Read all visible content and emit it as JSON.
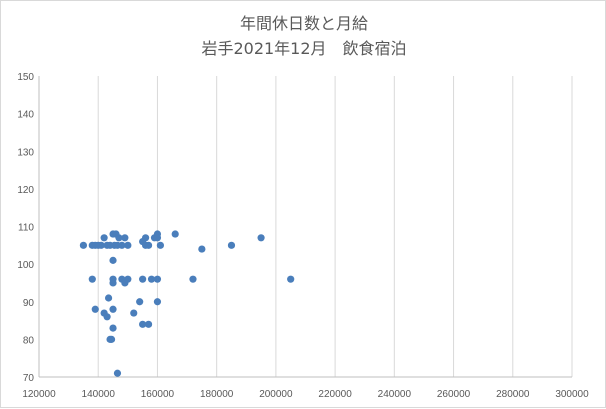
{
  "chart_data": {
    "type": "scatter",
    "title_lines": [
      "年間休日数と月給",
      "岩手2021年12月　飲食宿泊"
    ],
    "xlabel": "",
    "ylabel": "",
    "xlim": [
      120000,
      300000
    ],
    "ylim": [
      70,
      150
    ],
    "x_ticks": [
      120000,
      140000,
      160000,
      180000,
      200000,
      220000,
      240000,
      260000,
      280000,
      300000
    ],
    "y_ticks": [
      70,
      80,
      90,
      100,
      110,
      120,
      130,
      140,
      150
    ],
    "grid": "vertical",
    "legend": "none",
    "marker_color": "#4a7ebb",
    "points": [
      [
        135000,
        105
      ],
      [
        138000,
        105
      ],
      [
        139000,
        105
      ],
      [
        140000,
        105
      ],
      [
        141000,
        105
      ],
      [
        142000,
        107
      ],
      [
        143000,
        105
      ],
      [
        144000,
        105
      ],
      [
        145000,
        108
      ],
      [
        146000,
        108
      ],
      [
        145500,
        105
      ],
      [
        146500,
        105
      ],
      [
        147000,
        107
      ],
      [
        148000,
        105
      ],
      [
        149000,
        107
      ],
      [
        150000,
        105
      ],
      [
        138000,
        96
      ],
      [
        139000,
        88
      ],
      [
        142000,
        87
      ],
      [
        143000,
        86
      ],
      [
        143500,
        91
      ],
      [
        144000,
        80
      ],
      [
        144500,
        80
      ],
      [
        145000,
        83
      ],
      [
        145000,
        88
      ],
      [
        145000,
        95
      ],
      [
        145000,
        96
      ],
      [
        145000,
        101
      ],
      [
        146500,
        71
      ],
      [
        148000,
        96
      ],
      [
        149000,
        95
      ],
      [
        150000,
        96
      ],
      [
        152000,
        87
      ],
      [
        154000,
        90
      ],
      [
        155000,
        84
      ],
      [
        155000,
        96
      ],
      [
        155000,
        106
      ],
      [
        156000,
        107
      ],
      [
        156000,
        105
      ],
      [
        157000,
        105
      ],
      [
        157000,
        84
      ],
      [
        158000,
        96
      ],
      [
        159000,
        107
      ],
      [
        160000,
        108
      ],
      [
        160000,
        107
      ],
      [
        160000,
        96
      ],
      [
        160000,
        90
      ],
      [
        161000,
        105
      ],
      [
        166000,
        108
      ],
      [
        172000,
        96
      ],
      [
        175000,
        104
      ],
      [
        185000,
        105
      ],
      [
        195000,
        107
      ],
      [
        205000,
        96
      ]
    ]
  }
}
